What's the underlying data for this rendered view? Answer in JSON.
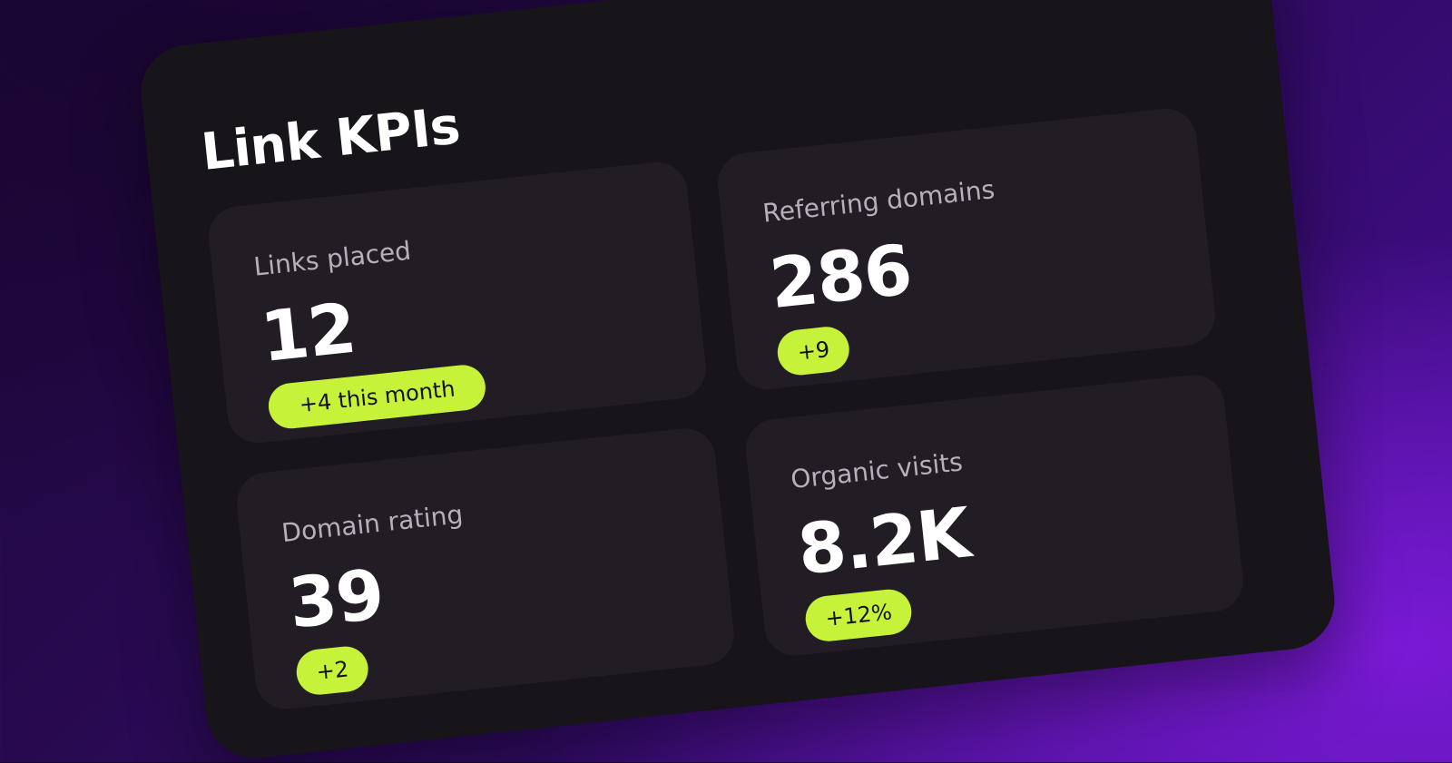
{
  "title": "Link KPIs",
  "cards": [
    {
      "label": "Links placed",
      "value": "12",
      "badge": "+4 this month"
    },
    {
      "label": "Referring domains",
      "value": "286",
      "badge": "+9"
    },
    {
      "label": "Domain rating",
      "value": "39",
      "badge": "+2"
    },
    {
      "label": "Organic visits",
      "value": "8.2K",
      "badge": "+12%"
    }
  ],
  "colors": {
    "accent": "#c6f33a",
    "panel": "#17141a",
    "card": "#221c25",
    "background_gradient": [
      "#1c0738",
      "#4d11a0",
      "#7a1ad6"
    ]
  }
}
